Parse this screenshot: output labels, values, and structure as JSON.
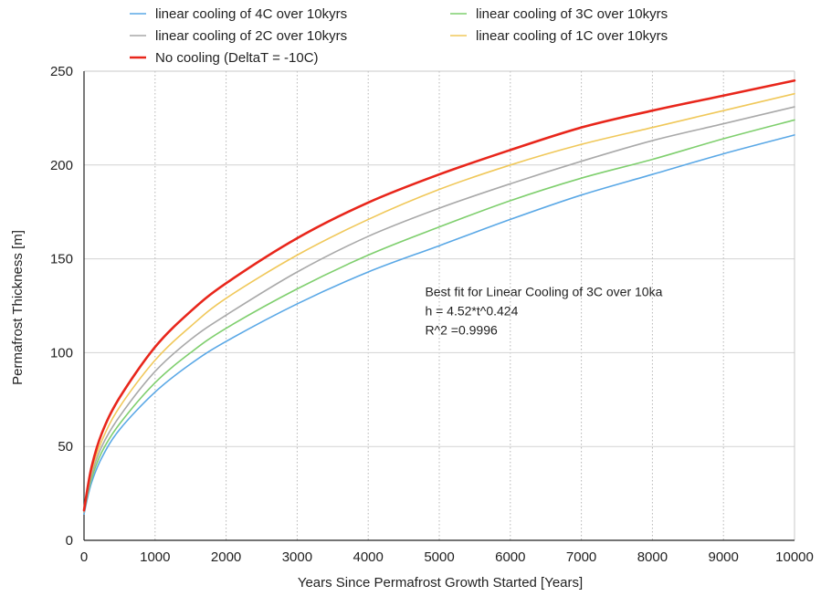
{
  "chart_data": {
    "type": "line",
    "xlabel": "Years Since Permafrost Growth Started [Years]",
    "ylabel": "Permafrost Thickness [m]",
    "xlim": [
      0,
      10000
    ],
    "ylim": [
      0,
      250
    ],
    "x_ticks": [
      0,
      1000,
      2000,
      3000,
      4000,
      5000,
      6000,
      7000,
      8000,
      9000,
      10000
    ],
    "y_ticks": [
      0,
      50,
      100,
      150,
      200,
      250
    ],
    "grid": true,
    "legend_placement": "top",
    "x": [
      0,
      100,
      250,
      500,
      1000,
      1500,
      2000,
      3000,
      4000,
      5000,
      6000,
      7000,
      8000,
      9000,
      10000
    ],
    "series": [
      {
        "name": "linear cooling of 4C over 10kyrs",
        "color": "#5aa8e6",
        "values": [
          14,
          30,
          44,
          59,
          79,
          94,
          106,
          126,
          143,
          157,
          171,
          184,
          195,
          206,
          216
        ]
      },
      {
        "name": "linear cooling of 3C over 10kyrs",
        "color": "#7fcf6e",
        "values": [
          15,
          32,
          47,
          62,
          84,
          100,
          113,
          134,
          152,
          167,
          181,
          193,
          203,
          214,
          224
        ]
      },
      {
        "name": "linear cooling of 2C over 10kyrs",
        "color": "#a9a9a9",
        "values": [
          15,
          34,
          50,
          66,
          90,
          107,
          120,
          143,
          162,
          177,
          190,
          202,
          213,
          222,
          231
        ]
      },
      {
        "name": "linear cooling of 1C over 10kyrs",
        "color": "#f0c85a",
        "values": [
          16,
          36,
          53,
          71,
          96,
          114,
          129,
          152,
          171,
          187,
          200,
          211,
          220,
          229,
          238
        ]
      },
      {
        "name": "No cooling (DeltaT = -10C)",
        "color": "#e8261b",
        "values": [
          16,
          38,
          57,
          76,
          103,
          122,
          137,
          161,
          180,
          195,
          208,
          220,
          229,
          237,
          245
        ]
      }
    ],
    "annotation": {
      "lines": [
        "Best fit for Linear Cooling of 3C over 10ka",
        "h = 4.52*t^0.424",
        "R^2 =0.9996"
      ],
      "anchor": {
        "x": 4800,
        "y": 130
      }
    }
  }
}
